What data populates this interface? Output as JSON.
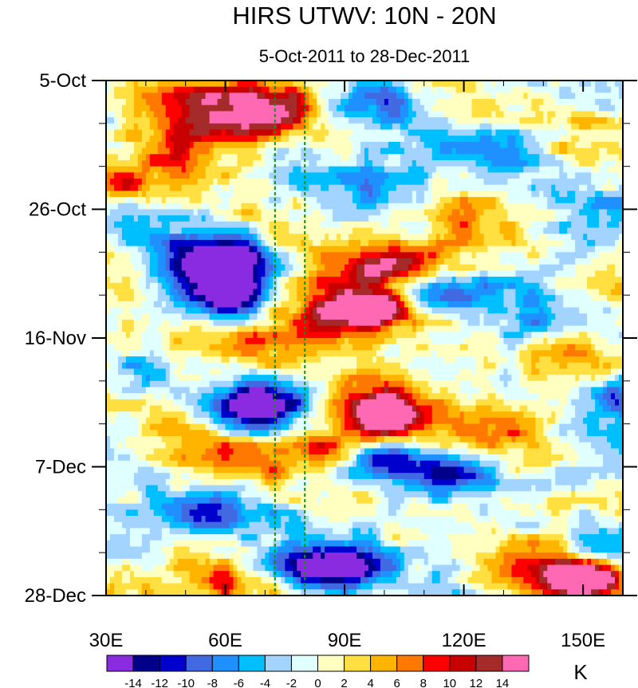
{
  "chart_data": {
    "type": "heatmap",
    "title": "HIRS UTWV: 10N - 20N",
    "subtitle": "5-Oct-2011 to 28-Dec-2011",
    "xlabel": "",
    "ylabel": "",
    "x_range": [
      30,
      160
    ],
    "x_ticks": [
      30,
      60,
      90,
      120,
      150
    ],
    "x_tick_labels": [
      "30E",
      "60E",
      "90E",
      "120E",
      "150E"
    ],
    "y_ticks_day": [
      0,
      21,
      42,
      63,
      84
    ],
    "y_tick_labels": [
      "5-Oct",
      "26-Oct",
      "16-Nov",
      "7-Dec",
      "28-Dec"
    ],
    "y_range_days": [
      0,
      84
    ],
    "reference_lines_lon": [
      72.5,
      80
    ],
    "colorbar": {
      "unit": "K",
      "levels": [
        -14,
        -12,
        -10,
        -8,
        -6,
        -4,
        -2,
        0,
        2,
        4,
        6,
        8,
        10,
        12,
        14
      ],
      "labels": [
        "-14",
        "-12",
        "-10",
        "-8",
        "-6",
        "-4",
        "-2",
        "0",
        "2",
        "4",
        "6",
        "8",
        "10",
        "12",
        "14"
      ],
      "colors": [
        "#8a2be2",
        "#00008b",
        "#0000cd",
        "#4169e1",
        "#1e90ff",
        "#00bfff",
        "#a3d3ff",
        "#e0ffff",
        "#ffffc0",
        "#ffe040",
        "#ffb400",
        "#ff7800",
        "#ff0000",
        "#c80000",
        "#a52a2a",
        "#ff69b4"
      ]
    },
    "anomaly_features": [
      {
        "lon": 62,
        "day": 30,
        "amp": -16,
        "slon": 7,
        "sday": 3.2
      },
      {
        "lon": 63,
        "day": 35,
        "amp": -13,
        "slon": 5,
        "sday": 2.2
      },
      {
        "lon": 53,
        "day": 31,
        "amp": -9,
        "slon": 8,
        "sday": 5
      },
      {
        "lon": 65,
        "day": 53.5,
        "amp": -12,
        "slon": 6,
        "sday": 2.2
      },
      {
        "lon": 73,
        "day": 53,
        "amp": -9,
        "slon": 10,
        "sday": 3
      },
      {
        "lon": 58,
        "day": 70,
        "amp": -11,
        "slon": 9,
        "sday": 2.5
      },
      {
        "lon": 88,
        "day": 80,
        "amp": -14,
        "slon": 8,
        "sday": 2.2
      },
      {
        "lon": 80,
        "day": 79,
        "amp": -10,
        "slon": 10,
        "sday": 3
      },
      {
        "lon": 112,
        "day": 35,
        "amp": -10,
        "slon": 10,
        "sday": 2.2
      },
      {
        "lon": 117,
        "day": 64,
        "amp": -11,
        "slon": 9,
        "sday": 2.2
      },
      {
        "lon": 100,
        "day": 61,
        "amp": -8,
        "slon": 7,
        "sday": 2.5
      },
      {
        "lon": 160,
        "day": 52,
        "amp": -9,
        "slon": 5,
        "sday": 3
      },
      {
        "lon": 142,
        "day": 67,
        "amp": -8,
        "slon": 7,
        "sday": 2.5
      },
      {
        "lon": 130,
        "day": 11,
        "amp": -6,
        "slon": 12,
        "sday": 4
      },
      {
        "lon": 150,
        "day": 23,
        "amp": -6,
        "slon": 8,
        "sday": 5
      },
      {
        "lon": 98,
        "day": 16,
        "amp": -6,
        "slon": 10,
        "sday": 3
      },
      {
        "lon": 78,
        "day": 12,
        "amp": -5,
        "slon": 6,
        "sday": 3
      },
      {
        "lon": 40,
        "day": 48,
        "amp": -5,
        "slon": 8,
        "sday": 3
      },
      {
        "lon": 135,
        "day": 40,
        "amp": -6,
        "slon": 8,
        "sday": 4
      },
      {
        "lon": 100,
        "day": 3,
        "amp": -6,
        "slon": 10,
        "sday": 3
      },
      {
        "lon": 155,
        "day": 75,
        "amp": -7,
        "slon": 6,
        "sday": 3
      },
      {
        "lon": 73,
        "day": 4,
        "amp": 12,
        "slon": 10,
        "sday": 3.5
      },
      {
        "lon": 58,
        "day": 6,
        "amp": 8,
        "slon": 10,
        "sday": 4
      },
      {
        "lon": 45,
        "day": 11,
        "amp": 7,
        "slon": 9,
        "sday": 5
      },
      {
        "lon": 35,
        "day": 17,
        "amp": 8,
        "slon": 4,
        "sday": 1.5
      },
      {
        "lon": 98,
        "day": 37.5,
        "amp": 16,
        "slon": 5,
        "sday": 1.5
      },
      {
        "lon": 93,
        "day": 36,
        "amp": 10,
        "slon": 12,
        "sday": 3
      },
      {
        "lon": 88,
        "day": 39,
        "amp": 10,
        "slon": 8,
        "sday": 2.5
      },
      {
        "lon": 100,
        "day": 30.5,
        "amp": 9,
        "slon": 8,
        "sday": 2
      },
      {
        "lon": 110,
        "day": 28,
        "amp": 7,
        "slon": 12,
        "sday": 3
      },
      {
        "lon": 100,
        "day": 55,
        "amp": 17,
        "slon": 5,
        "sday": 2.2
      },
      {
        "lon": 97,
        "day": 54,
        "amp": 11,
        "slon": 12,
        "sday": 3.2
      },
      {
        "lon": 84,
        "day": 60,
        "amp": 9,
        "slon": 8,
        "sday": 2.5
      },
      {
        "lon": 65,
        "day": 43,
        "amp": 7,
        "slon": 12,
        "sday": 3
      },
      {
        "lon": 150,
        "day": 81.5,
        "amp": 15,
        "slon": 6,
        "sday": 1.8
      },
      {
        "lon": 145,
        "day": 80,
        "amp": 10,
        "slon": 12,
        "sday": 3
      },
      {
        "lon": 143,
        "day": 68,
        "amp": 7,
        "slon": 10,
        "sday": 2
      },
      {
        "lon": 55,
        "day": 82,
        "amp": 8,
        "slon": 10,
        "sday": 2.5
      },
      {
        "lon": 35,
        "day": 82,
        "amp": 6,
        "slon": 6,
        "sday": 2
      },
      {
        "lon": 60,
        "day": 62,
        "amp": 5,
        "slon": 10,
        "sday": 3
      },
      {
        "lon": 140,
        "day": 45,
        "amp": 6,
        "slon": 10,
        "sday": 3
      },
      {
        "lon": 120,
        "day": 22,
        "amp": 5,
        "slon": 8,
        "sday": 3
      },
      {
        "lon": 150,
        "day": 10,
        "amp": 5,
        "slon": 8,
        "sday": 4
      },
      {
        "lon": 130,
        "day": 57,
        "amp": 5,
        "slon": 10,
        "sday": 3
      }
    ]
  }
}
